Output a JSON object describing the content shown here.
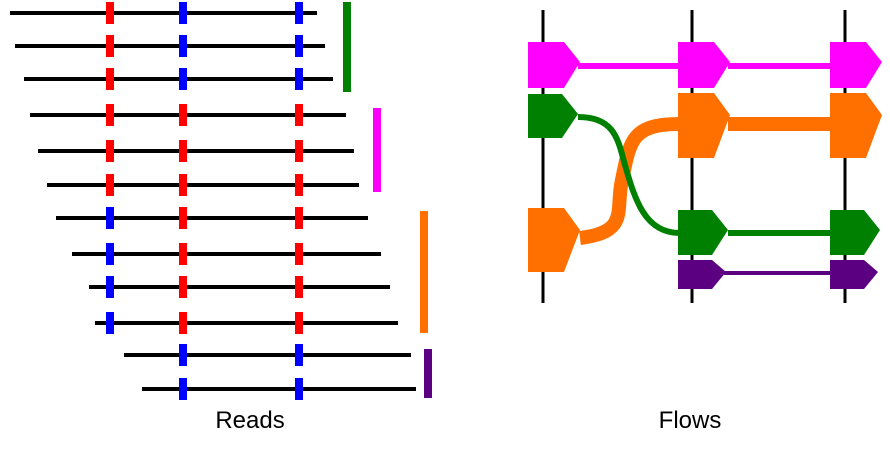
{
  "captions": {
    "reads": "Reads",
    "flows": "Flows"
  },
  "colors": {
    "line": "#000000",
    "red": "#ff0000",
    "blue": "#0000ff",
    "green": "#008000",
    "magenta": "#ff00ff",
    "orange": "#ff7000",
    "purple": "#5a0080"
  },
  "reads": [
    {
      "group": "green",
      "variants": [
        "red",
        "blue",
        "blue"
      ]
    },
    {
      "group": "green",
      "variants": [
        "red",
        "blue",
        "blue"
      ]
    },
    {
      "group": "green",
      "variants": [
        "red",
        "blue",
        "blue"
      ]
    },
    {
      "group": "magenta",
      "variants": [
        "red",
        "red",
        "red"
      ]
    },
    {
      "group": "magenta",
      "variants": [
        "red",
        "red",
        "red"
      ]
    },
    {
      "group": "magenta",
      "variants": [
        "red",
        "red",
        "red"
      ]
    },
    {
      "group": "orange",
      "variants": [
        "blue",
        "red",
        "red"
      ]
    },
    {
      "group": "orange",
      "variants": [
        "blue",
        "red",
        "red"
      ]
    },
    {
      "group": "orange",
      "variants": [
        "blue",
        "red",
        "red"
      ]
    },
    {
      "group": "orange",
      "variants": [
        "blue",
        "red",
        "red"
      ]
    },
    {
      "group": "purple",
      "variants": [
        null,
        "blue",
        "blue"
      ]
    },
    {
      "group": "purple",
      "variants": [
        null,
        "blue",
        "blue"
      ]
    }
  ],
  "read_groups": [
    "green",
    "magenta",
    "orange",
    "purple"
  ],
  "flows": [
    {
      "name": "magenta",
      "path": [
        "magenta",
        "magenta",
        "magenta"
      ]
    },
    {
      "name": "green-to-orange",
      "path": [
        "green",
        "orange",
        "orange"
      ]
    },
    {
      "name": "orange-to-green",
      "path": [
        "orange",
        "green",
        "green"
      ]
    },
    {
      "name": "purple",
      "path": [
        null,
        "purple",
        "purple"
      ]
    }
  ]
}
